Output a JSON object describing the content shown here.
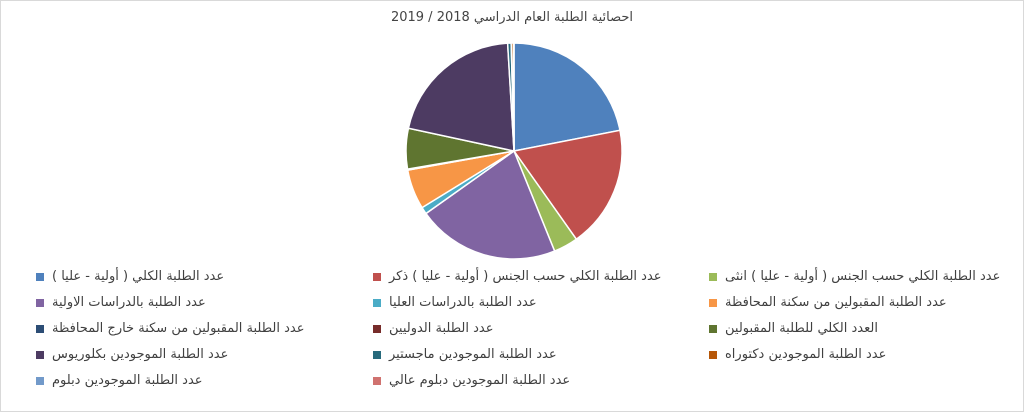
{
  "chart_data": {
    "type": "pie",
    "title": "احصائية الطلبة العام الدراسي 2018 / 2019",
    "legend_position": "bottom",
    "series": [
      {
        "name": "عدد الطلبة الكلي ( أولية - عليا )",
        "value": 21.0,
        "color": "#4f81bd"
      },
      {
        "name": "عدد الطلبة الكلي حسب الجنس ( أولية - عليا ) ذكر",
        "value": 17.5,
        "color": "#c0504d"
      },
      {
        "name": "عدد الطلبة الكلي حسب الجنس ( أولية - عليا ) انثى",
        "value": 3.5,
        "color": "#9bbb59"
      },
      {
        "name": "عدد الطلبة بالدراسات الاولية",
        "value": 20.4,
        "color": "#8064a2"
      },
      {
        "name": "عدد الطلبة بالدراسات العليا",
        "value": 1.0,
        "color": "#4bacc6"
      },
      {
        "name": "عدد الطلبة المقبولين من سكنة المحافظة",
        "value": 5.7,
        "color": "#f79646"
      },
      {
        "name": "عدد الطلبة المقبولين من سكنة خارج المحافظة",
        "value": 0.1,
        "color": "#2c4d75"
      },
      {
        "name": "عدد الطلبة الدوليين",
        "value": 0.05,
        "color": "#772c2a"
      },
      {
        "name": "العدد الكلي للطلبة المقبولين",
        "value": 5.8,
        "color": "#5f7530"
      },
      {
        "name": "عدد الطلبة الموجودين بكلوريوس",
        "value": 19.8,
        "color": "#4d3b62"
      },
      {
        "name": "عدد الطلبة الموجودين ماجستير",
        "value": 0.5,
        "color": "#276a7c"
      },
      {
        "name": "عدد الطلبة الموجودين دكتوراه",
        "value": 0.3,
        "color": "#b65708"
      },
      {
        "name": "عدد الطلبة الموجودين دبلوم",
        "value": 0.05,
        "color": "#729aca"
      },
      {
        "name": "عدد الطلبة الموجودين دبلوم عالي",
        "value": 0.05,
        "color": "#d0726f"
      }
    ]
  }
}
